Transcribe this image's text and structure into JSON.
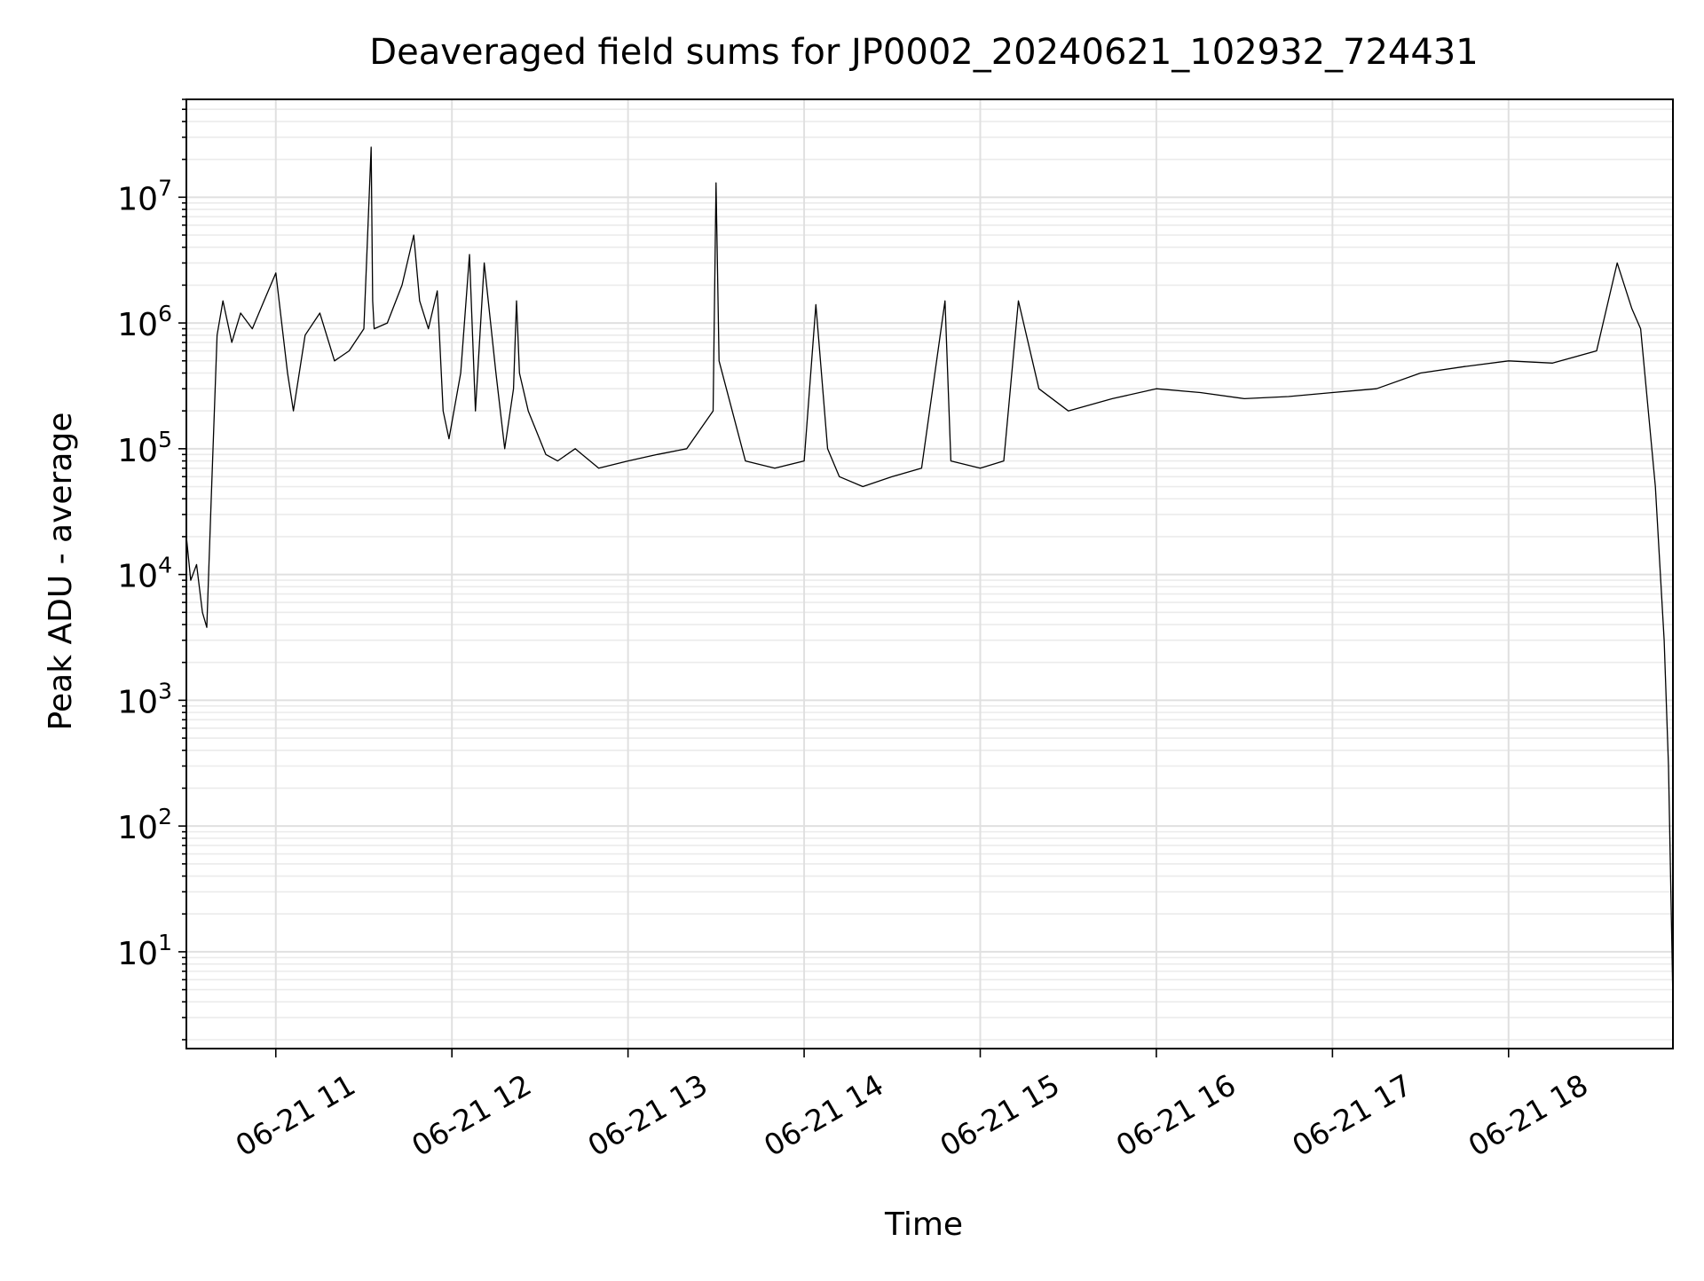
{
  "chart_data": {
    "type": "line",
    "title": "Deaveraged field sums for JP0002_20240621_102932_724431",
    "xlabel": "Time",
    "ylabel": "Peak ADU - average",
    "yscale": "log",
    "ylim": [
      1.7,
      60000000
    ],
    "xlim": [
      "2024-06-21 10:29:32",
      "2024-06-21 18:56:00"
    ],
    "grid": "both (major and minor), light gray",
    "line_color": "#000000",
    "x_tick_labels": [
      {
        "t": "2024-06-21 11:00",
        "label": "06-21 11"
      },
      {
        "t": "2024-06-21 12:00",
        "label": "06-21 12"
      },
      {
        "t": "2024-06-21 13:00",
        "label": "06-21 13"
      },
      {
        "t": "2024-06-21 14:00",
        "label": "06-21 14"
      },
      {
        "t": "2024-06-21 15:00",
        "label": "06-21 15"
      },
      {
        "t": "2024-06-21 16:00",
        "label": "06-21 16"
      },
      {
        "t": "2024-06-21 17:00",
        "label": "06-21 17"
      },
      {
        "t": "2024-06-21 18:00",
        "label": "06-21 18"
      }
    ],
    "y_tick_labels": [
      {
        "value": 10,
        "base": "10",
        "exp": "1"
      },
      {
        "value": 100,
        "base": "10",
        "exp": "2"
      },
      {
        "value": 1000,
        "base": "10",
        "exp": "3"
      },
      {
        "value": 10000,
        "base": "10",
        "exp": "4"
      },
      {
        "value": 100000,
        "base": "10",
        "exp": "5"
      },
      {
        "value": 1000000,
        "base": "10",
        "exp": "6"
      },
      {
        "value": 10000000,
        "base": "10",
        "exp": "7"
      }
    ],
    "series": [
      {
        "x": [
          "2024-06-21 10:29:32",
          "2024-06-21 10:31:00",
          "2024-06-21 10:33:00",
          "2024-06-21 10:35:00",
          "2024-06-21 10:36:30",
          "2024-06-21 10:38:00",
          "2024-06-21 10:40:00",
          "2024-06-21 10:42:00",
          "2024-06-21 10:45:00",
          "2024-06-21 10:48:00",
          "2024-06-21 10:52:00",
          "2024-06-21 10:56:00",
          "2024-06-21 11:00:00",
          "2024-06-21 11:04:00",
          "2024-06-21 11:06:00",
          "2024-06-21 11:10:00",
          "2024-06-21 11:15:00",
          "2024-06-21 11:20:00",
          "2024-06-21 11:25:00",
          "2024-06-21 11:30:00",
          "2024-06-21 11:32:30",
          "2024-06-21 11:33:00",
          "2024-06-21 11:33:30",
          "2024-06-21 11:38:00",
          "2024-06-21 11:43:00",
          "2024-06-21 11:47:00",
          "2024-06-21 11:49:00",
          "2024-06-21 11:52:00",
          "2024-06-21 11:55:00",
          "2024-06-21 11:57:00",
          "2024-06-21 11:59:00",
          "2024-06-21 12:03:00",
          "2024-06-21 12:06:00",
          "2024-06-21 12:08:00",
          "2024-06-21 12:11:00",
          "2024-06-21 12:15:00",
          "2024-06-21 12:18:00",
          "2024-06-21 12:21:00",
          "2024-06-21 12:22:00",
          "2024-06-21 12:23:00",
          "2024-06-21 12:26:00",
          "2024-06-21 12:32:00",
          "2024-06-21 12:36:00",
          "2024-06-21 12:42:00",
          "2024-06-21 12:50:00",
          "2024-06-21 13:00:00",
          "2024-06-21 13:10:00",
          "2024-06-21 13:20:00",
          "2024-06-21 13:29:00",
          "2024-06-21 13:30:00",
          "2024-06-21 13:31:00",
          "2024-06-21 13:40:00",
          "2024-06-21 13:50:00",
          "2024-06-21 14:00:00",
          "2024-06-21 14:04:00",
          "2024-06-21 14:08:00",
          "2024-06-21 14:12:00",
          "2024-06-21 14:20:00",
          "2024-06-21 14:30:00",
          "2024-06-21 14:40:00",
          "2024-06-21 14:48:00",
          "2024-06-21 14:50:00",
          "2024-06-21 15:00:00",
          "2024-06-21 15:08:00",
          "2024-06-21 15:13:00",
          "2024-06-21 15:20:00",
          "2024-06-21 15:30:00",
          "2024-06-21 15:45:00",
          "2024-06-21 16:00:00",
          "2024-06-21 16:15:00",
          "2024-06-21 16:30:00",
          "2024-06-21 16:45:00",
          "2024-06-21 17:00:00",
          "2024-06-21 17:15:00",
          "2024-06-21 17:30:00",
          "2024-06-21 17:45:00",
          "2024-06-21 18:00:00",
          "2024-06-21 18:15:00",
          "2024-06-21 18:30:00",
          "2024-06-21 18:37:00",
          "2024-06-21 18:42:00",
          "2024-06-21 18:45:00",
          "2024-06-21 18:50:00",
          "2024-06-21 18:53:00",
          "2024-06-21 18:54:30",
          "2024-06-21 18:56:00"
        ],
        "y": [
          20000,
          9000,
          12000,
          5000,
          3800,
          40000,
          800000,
          1500000,
          700000,
          1200000,
          900000,
          1500000,
          2500000,
          400000,
          200000,
          800000,
          1200000,
          500000,
          600000,
          900000,
          25000000,
          1500000,
          900000,
          1000000,
          2000000,
          5000000,
          1500000,
          900000,
          1800000,
          200000,
          120000,
          400000,
          3500000,
          200000,
          3000000,
          400000,
          100000,
          300000,
          1500000,
          400000,
          200000,
          90000,
          80000,
          100000,
          70000,
          80000,
          90000,
          100000,
          200000,
          13000000,
          500000,
          80000,
          70000,
          80000,
          1400000,
          100000,
          60000,
          50000,
          60000,
          70000,
          1500000,
          80000,
          70000,
          80000,
          1500000,
          300000,
          200000,
          250000,
          300000,
          280000,
          250000,
          260000,
          280000,
          300000,
          400000,
          450000,
          500000,
          480000,
          600000,
          3000000,
          1300000,
          900000,
          50000,
          3000,
          300,
          4
        ]
      }
    ]
  }
}
